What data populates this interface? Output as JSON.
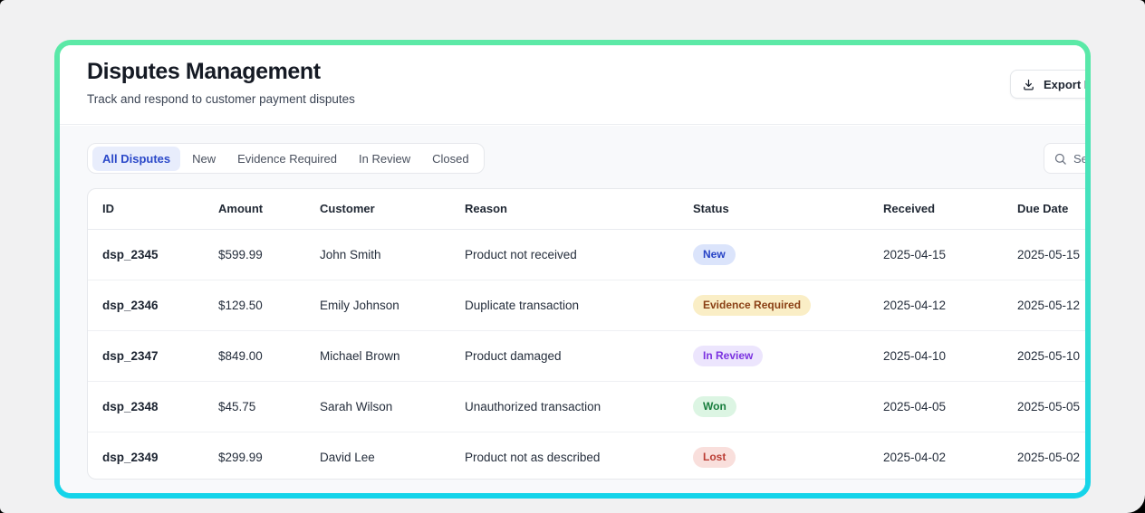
{
  "colors": {
    "frame_gradient_top": "#5ce9a6",
    "frame_gradient_bottom": "#14d4ea",
    "tab_active_bg": "#e8edfc",
    "tab_active_fg": "#2b49c9",
    "badges": {
      "New": {
        "bg": "#dbe4fb",
        "fg": "#2743c6"
      },
      "Evidence Required": {
        "bg": "#faeec6",
        "fg": "#8a4015"
      },
      "In Review": {
        "bg": "#ece5fd",
        "fg": "#7b33e0"
      },
      "Won": {
        "bg": "#dcf5e3",
        "fg": "#177d3d"
      },
      "Lost": {
        "bg": "#f9dfdc",
        "fg": "#bb3d34"
      }
    }
  },
  "header": {
    "title": "Disputes Management",
    "subtitle": "Track and respond to customer payment disputes",
    "export_button_label": "Export Report"
  },
  "tabs": {
    "items": [
      "All Disputes",
      "New",
      "Evidence Required",
      "In Review",
      "Closed"
    ],
    "active": "All Disputes"
  },
  "search": {
    "placeholder": "Search..."
  },
  "table": {
    "columns": [
      "ID",
      "Amount",
      "Customer",
      "Reason",
      "Status",
      "Received",
      "Due Date"
    ],
    "rows": [
      {
        "id": "dsp_2345",
        "amount": "$599.99",
        "customer": "John Smith",
        "reason": "Product not received",
        "status": "New",
        "received": "2025-04-15",
        "due_date": "2025-05-15"
      },
      {
        "id": "dsp_2346",
        "amount": "$129.50",
        "customer": "Emily Johnson",
        "reason": "Duplicate transaction",
        "status": "Evidence Required",
        "received": "2025-04-12",
        "due_date": "2025-05-12"
      },
      {
        "id": "dsp_2347",
        "amount": "$849.00",
        "customer": "Michael Brown",
        "reason": "Product damaged",
        "status": "In Review",
        "received": "2025-04-10",
        "due_date": "2025-05-10"
      },
      {
        "id": "dsp_2348",
        "amount": "$45.75",
        "customer": "Sarah Wilson",
        "reason": "Unauthorized transaction",
        "status": "Won",
        "received": "2025-04-05",
        "due_date": "2025-05-05"
      },
      {
        "id": "dsp_2349",
        "amount": "$299.99",
        "customer": "David Lee",
        "reason": "Product not as described",
        "status": "Lost",
        "received": "2025-04-02",
        "due_date": "2025-05-02"
      }
    ]
  }
}
